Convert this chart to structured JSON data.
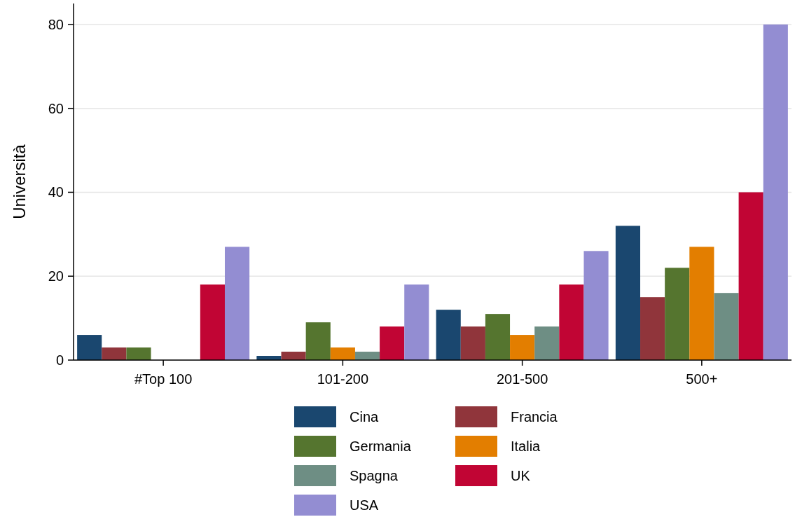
{
  "chart_data": {
    "type": "bar",
    "ylabel": "Università",
    "categories": [
      "#Top 100",
      "101-200",
      "201-500",
      "500+"
    ],
    "series": [
      {
        "name": "Cina",
        "color": "#1a476f",
        "values": [
          6,
          1,
          12,
          32
        ]
      },
      {
        "name": "Francia",
        "color": "#90353b",
        "values": [
          3,
          2,
          8,
          15
        ]
      },
      {
        "name": "Germania",
        "color": "#55752f",
        "values": [
          3,
          9,
          11,
          22
        ]
      },
      {
        "name": "Italia",
        "color": "#e37e00",
        "values": [
          0,
          3,
          6,
          27
        ]
      },
      {
        "name": "Spagna",
        "color": "#6e8e84",
        "values": [
          0,
          2,
          8,
          16
        ]
      },
      {
        "name": "UK",
        "color": "#c10534",
        "values": [
          18,
          8,
          18,
          40
        ]
      },
      {
        "name": "USA",
        "color": "#938dd2",
        "values": [
          27,
          18,
          26,
          80
        ]
      }
    ],
    "ylim": [
      0,
      85
    ],
    "yticks": [
      0,
      20,
      40,
      60,
      80
    ],
    "grid": "y",
    "legend": "bottom"
  }
}
